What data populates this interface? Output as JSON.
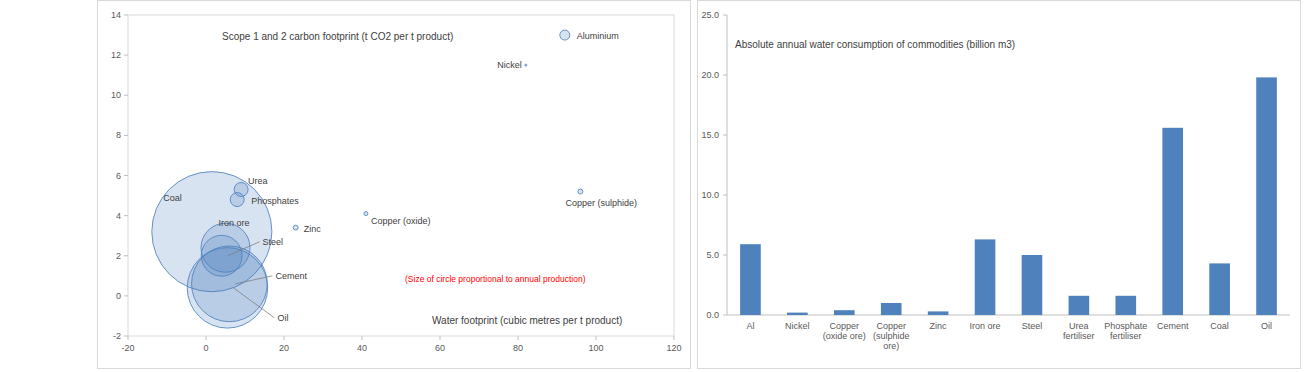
{
  "chart_data": [
    {
      "type": "scatter",
      "title": "Scope 1 and 2 carbon footprint (t CO2 per t product)",
      "x_label": "Water footprint (cubic metres per t product)",
      "annotation": "(Size of circle proportional to annual production)",
      "labels": [
        "Aluminium",
        "Nickel",
        "Copper (sulphide)",
        "Copper (oxide)",
        "Zinc",
        "Urea",
        "Phosphates",
        "Coal",
        "Iron ore",
        "Steel",
        "Cement",
        "Oil"
      ],
      "x": [
        92,
        82,
        96,
        41,
        23,
        9,
        8,
        1.5,
        5,
        4,
        6,
        5.5
      ],
      "values": [
        13,
        11.5,
        5.2,
        4.1,
        3.4,
        5.3,
        4.8,
        3.2,
        2.4,
        2.0,
        0.6,
        0.4
      ],
      "sizes": [
        54,
        2.2,
        13.5,
        8.6,
        13,
        106,
        106,
        7800,
        1300,
        900,
        3100,
        3500
      ],
      "color": "#4f81bd",
      "xlim": [
        -20,
        120
      ],
      "xticks": [
        -20,
        0,
        20,
        40,
        60,
        80,
        100,
        120
      ],
      "ylim": [
        -2,
        14
      ],
      "yticks": [
        -2,
        0,
        2,
        4,
        6,
        8,
        10,
        12,
        14
      ],
      "grid": false
    },
    {
      "type": "bar",
      "title": "Absolute annual water consumption of commodities (billion m3)",
      "categories": [
        "Al",
        "Nickel",
        "Copper (oxide ore)",
        "Copper (sulphide ore)",
        "Zinc",
        "Iron ore",
        "Steel",
        "Urea fertiliser",
        "Phosphate fertiliser",
        "Cement",
        "Coal",
        "Oil"
      ],
      "values": [
        5.9,
        0.2,
        0.4,
        1.0,
        0.3,
        6.3,
        5.0,
        1.6,
        1.6,
        15.6,
        4.3,
        19.8
      ],
      "color": "#4f81bd",
      "ylim": [
        0,
        25
      ],
      "yticks": [
        {
          "value": 0,
          "label": "0.0"
        },
        {
          "value": 5,
          "label": "5.0"
        },
        {
          "value": 10,
          "label": "10.0"
        },
        {
          "value": 15,
          "label": "15.0"
        },
        {
          "value": 20,
          "label": "20.0"
        },
        {
          "value": 25,
          "label": "25.0"
        }
      ],
      "grid": false
    }
  ]
}
